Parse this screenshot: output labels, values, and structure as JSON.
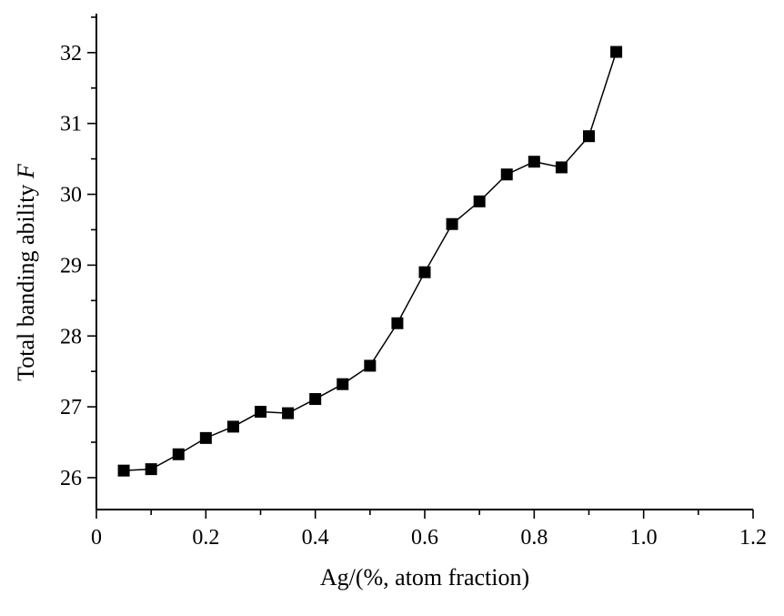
{
  "chart_data": {
    "type": "line",
    "title": "",
    "xlabel": "Ag/(%, atom fraction)",
    "ylabel": "Total banding ability",
    "ylabel_var": "F",
    "xlim": [
      0,
      1.2
    ],
    "ylim": [
      25.55,
      32.55
    ],
    "xticks": [
      0,
      0.2,
      0.4,
      0.6,
      0.8,
      1.0,
      1.2
    ],
    "xtick_labels": [
      "0",
      "0.2",
      "0.4",
      "0.6",
      "0.8",
      "1.0",
      "1.2"
    ],
    "yticks": [
      26,
      27,
      28,
      29,
      30,
      31,
      32
    ],
    "ytick_labels": [
      "26",
      "27",
      "28",
      "29",
      "30",
      "31",
      "32"
    ],
    "grid": false,
    "marker": "square",
    "series": [
      {
        "x": [
          0.05,
          0.1,
          0.15,
          0.2,
          0.25,
          0.3,
          0.35,
          0.4,
          0.45,
          0.5,
          0.55,
          0.6,
          0.65,
          0.7,
          0.75,
          0.8,
          0.85,
          0.9,
          0.95
        ],
        "values": [
          26.1,
          26.12,
          26.33,
          26.56,
          26.72,
          26.93,
          26.91,
          27.11,
          27.32,
          27.58,
          28.18,
          28.9,
          29.58,
          29.9,
          30.28,
          30.46,
          30.38,
          30.82,
          32.01
        ]
      }
    ]
  }
}
